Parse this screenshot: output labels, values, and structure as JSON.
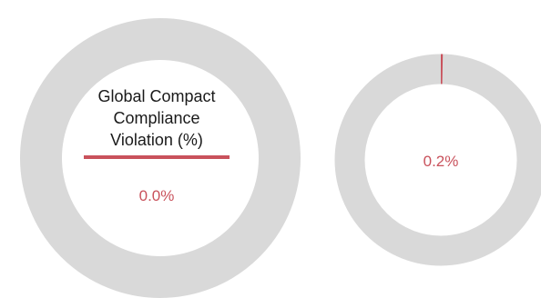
{
  "colors": {
    "track": "#d9d9d9",
    "accent": "#c9525c",
    "title": "#1a1a1a",
    "background": "#ffffff"
  },
  "chart_data": [
    {
      "type": "pie",
      "variant": "donut",
      "title_lines": [
        "Global Compact",
        "Compliance",
        "Violation (%)"
      ],
      "values": [
        0.0
      ],
      "value_label": "0.0%",
      "max": 100
    },
    {
      "type": "pie",
      "variant": "donut",
      "title_lines": [],
      "values": [
        0.2
      ],
      "value_label": "0.2%",
      "max": 100
    }
  ]
}
